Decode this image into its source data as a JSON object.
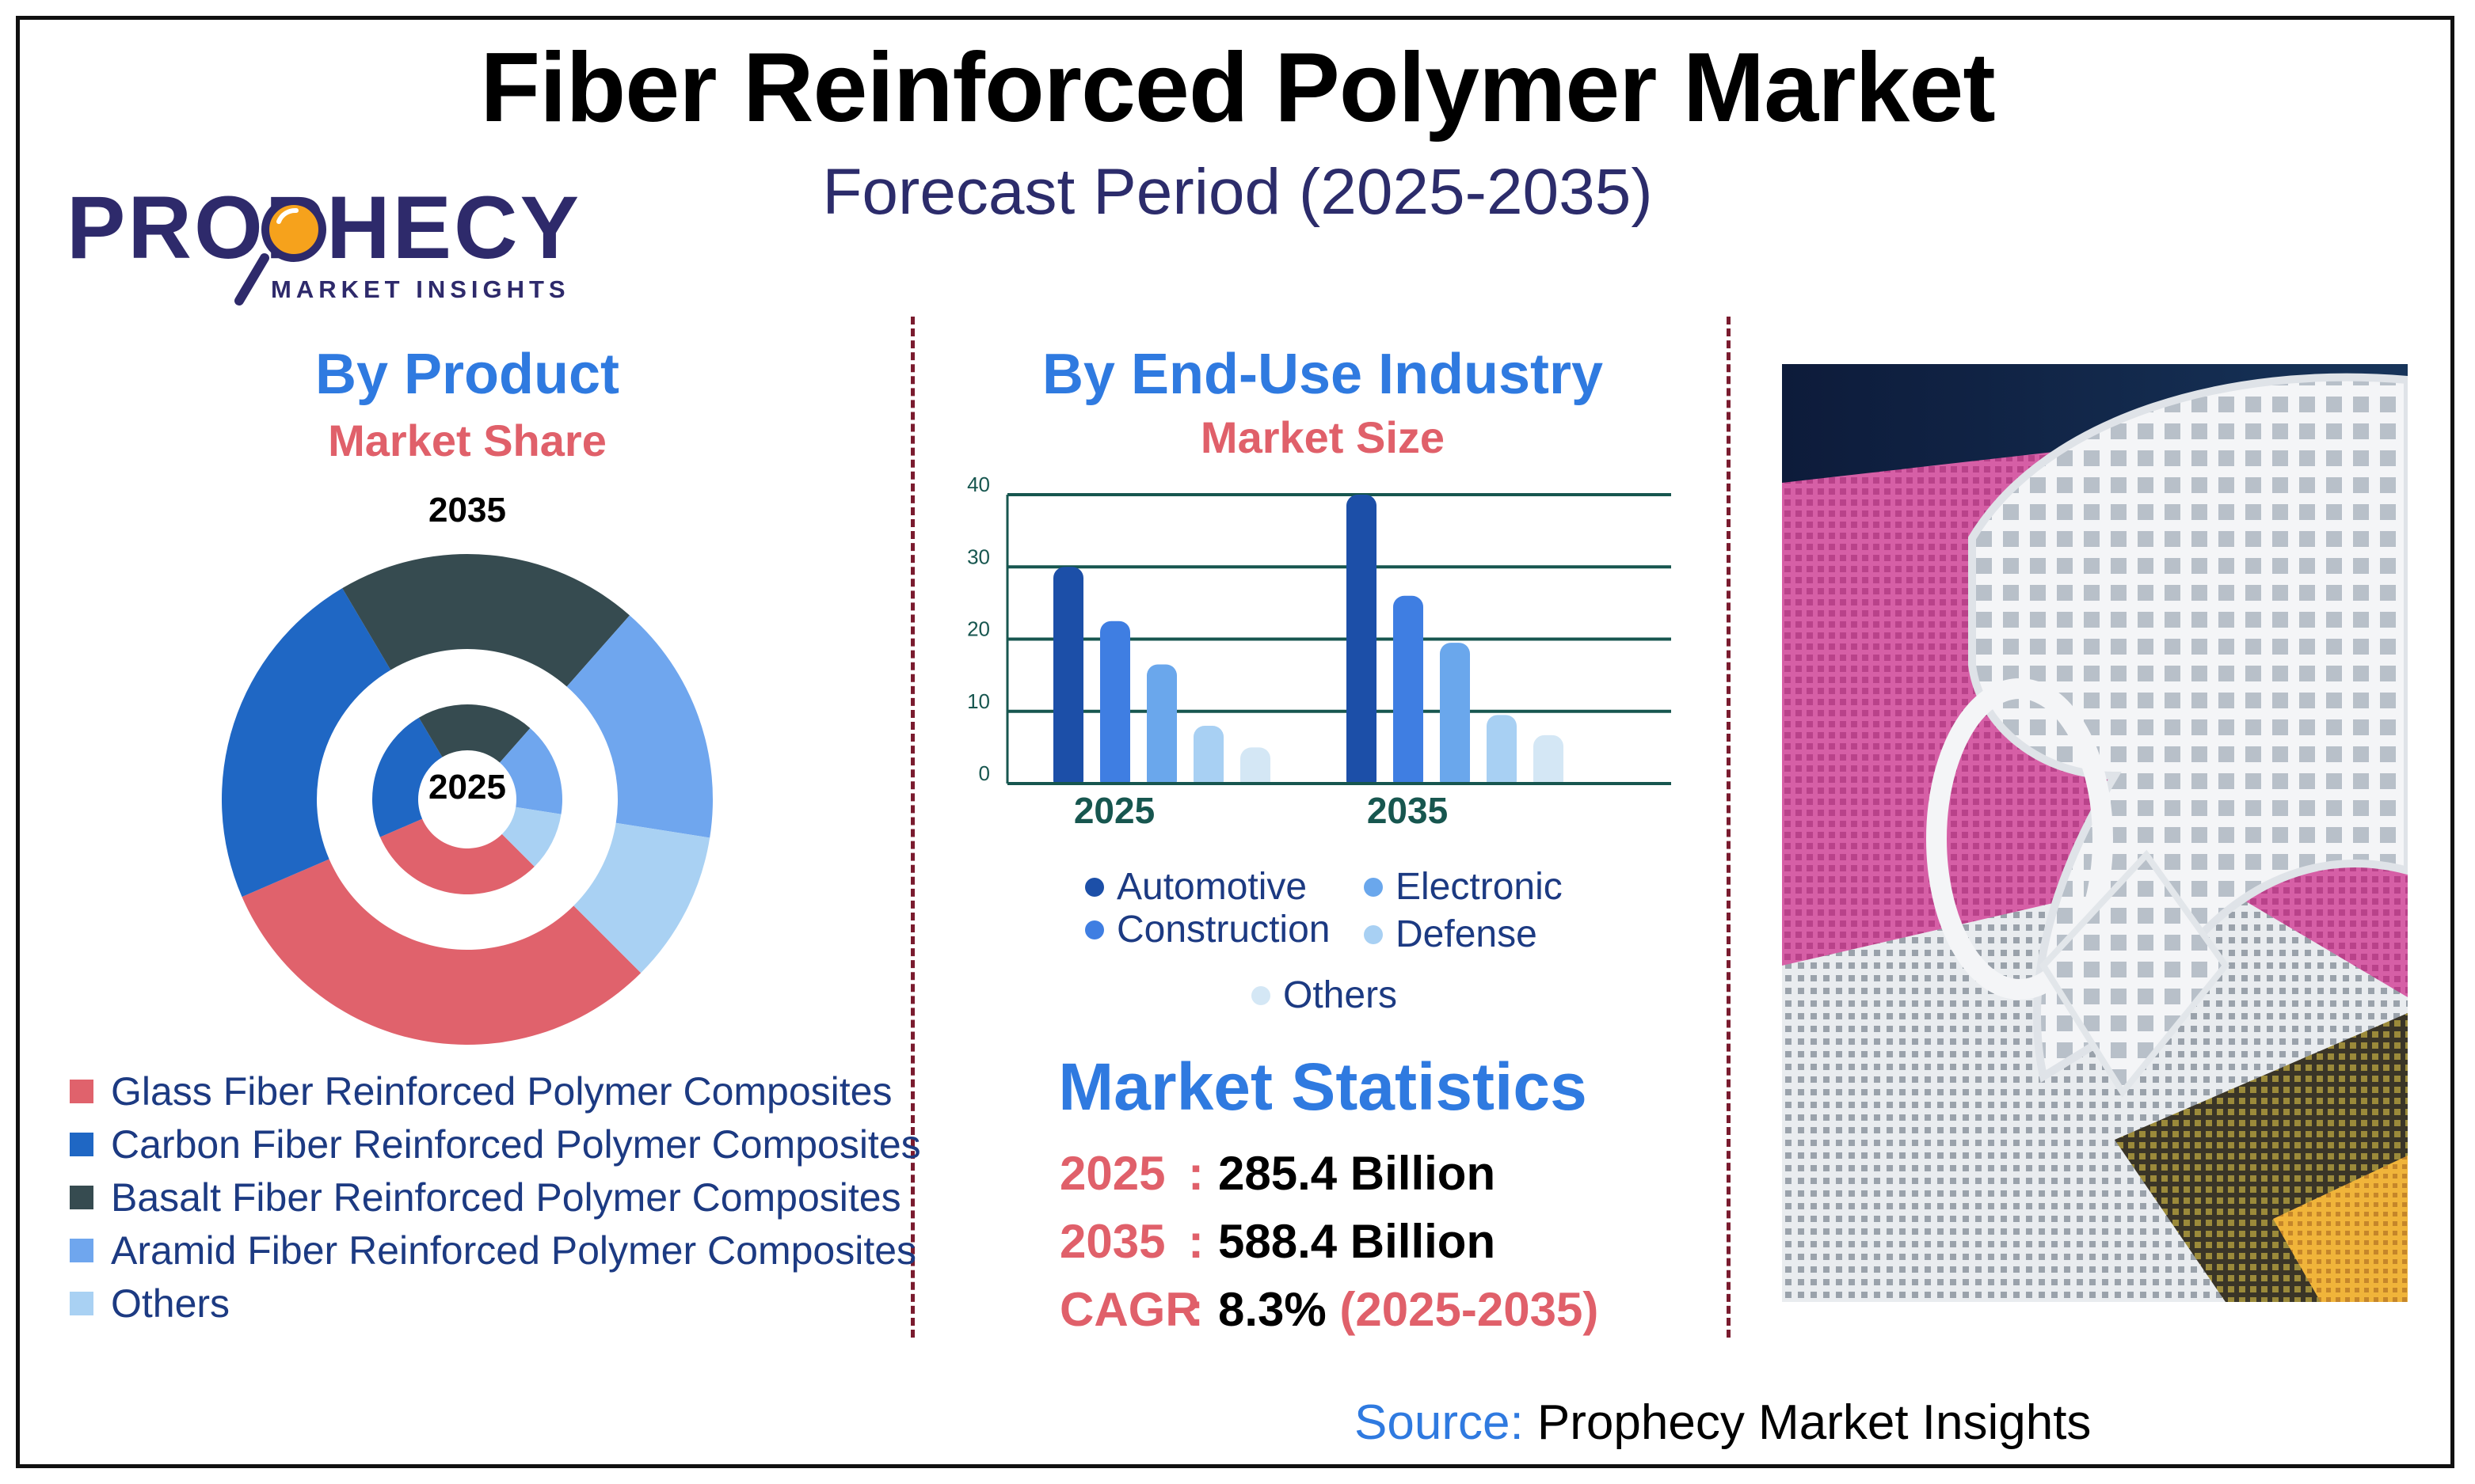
{
  "title": "Fiber Reinforced Polymer Market",
  "subtitle": "Forecast Period (2025-2035)",
  "logo": {
    "word": "PROPHECY",
    "sub": "MARKET INSIGHTS"
  },
  "product": {
    "heading": "By Product",
    "subheading": "Market Share",
    "outer_year": "2035",
    "inner_year": "2025"
  },
  "industry": {
    "heading": "By End-Use Industry",
    "subheading": "Market Size"
  },
  "statistics": {
    "heading": "Market Statistics",
    "rows": [
      {
        "key": "2025",
        "value": "285.4 Billion",
        "period": ""
      },
      {
        "key": "2035",
        "value": "588.4 Billion",
        "period": ""
      },
      {
        "key": "CAGR",
        "value": "8.3%",
        "period": "(2025-2035)"
      }
    ]
  },
  "source": {
    "label": "Source:",
    "value": "Prophecy Market Insights"
  },
  "colors": {
    "glass": "#e0626c",
    "carbon": "#1f67c4",
    "basalt": "#364b50",
    "aramid": "#6fa6ee",
    "others": "#a9d1f3",
    "automotive": "#1c4fa8",
    "construction": "#3f7ee2",
    "electronic": "#6aa7ec",
    "defense": "#a8d0f3",
    "bar_others": "#d4e7f5",
    "grid": "#17564f"
  },
  "chart_data": [
    {
      "type": "pie",
      "title": "By Product",
      "categories": [
        "Glass Fiber Reinforced Polymer Composites",
        "Carbon Fiber Reinforced Polymer Composites",
        "Basalt Fiber Reinforced Polymer Composites",
        "Aramid Fiber Reinforced Polymer Composites",
        "Others"
      ],
      "series": [
        {
          "name": "2035",
          "values": [
            31,
            23,
            20,
            16,
            10
          ]
        },
        {
          "name": "2025",
          "values": [
            31,
            23,
            20,
            16,
            10
          ]
        }
      ],
      "legend": "bottom"
    },
    {
      "type": "bar",
      "title": "By End-Use Industry",
      "categories": [
        "2025",
        "2035"
      ],
      "series": [
        {
          "name": "Automotive",
          "values": [
            30,
            40
          ]
        },
        {
          "name": "Construction",
          "values": [
            22.5,
            26
          ]
        },
        {
          "name": "Electronic",
          "values": [
            16.5,
            19.5
          ]
        },
        {
          "name": "Defense",
          "values": [
            8,
            9.5
          ]
        },
        {
          "name": "Others",
          "values": [
            5,
            6.7
          ]
        }
      ],
      "ylim": [
        0,
        40
      ],
      "yticks": [
        "0",
        "10",
        "20",
        "30",
        "40"
      ],
      "grid": true,
      "legend": "bottom"
    }
  ]
}
